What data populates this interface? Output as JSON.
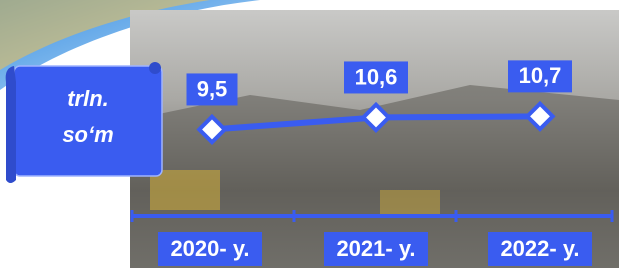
{
  "chart_data": {
    "type": "line",
    "unit_label": [
      "trln.",
      "so‘m"
    ],
    "categories": [
      "2020- y.",
      "2021- y.",
      "2022- y."
    ],
    "values": [
      9.5,
      10.6,
      10.7
    ],
    "value_labels": [
      "9,5",
      "10,6",
      "10,7"
    ],
    "color": "#3a5cf0"
  }
}
